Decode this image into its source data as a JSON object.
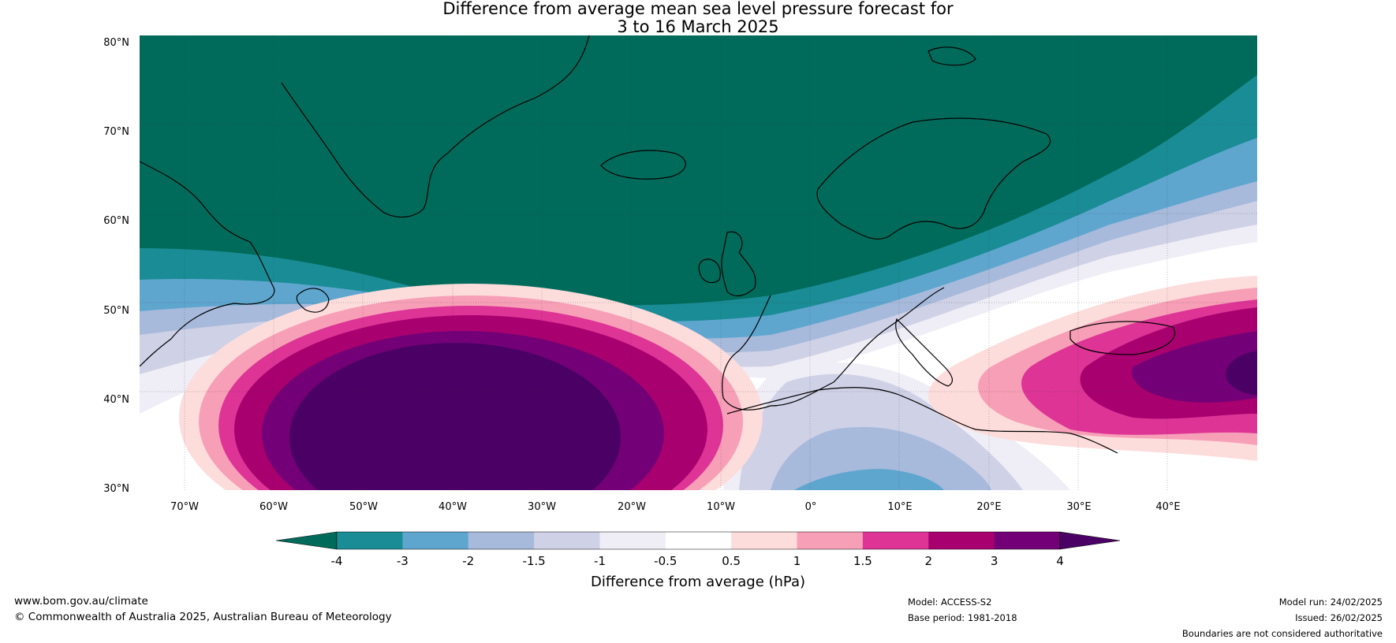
{
  "title": {
    "line1": "Difference from average mean sea level pressure forecast for",
    "line2": "3 to 16 March 2025"
  },
  "map": {
    "lat_labels": [
      "80°N",
      "70°N",
      "60°N",
      "50°N",
      "40°N",
      "30°N"
    ],
    "lon_labels": [
      "70°W",
      "60°W",
      "50°W",
      "40°W",
      "30°W",
      "20°W",
      "10°W",
      "0°",
      "10°E",
      "20°E",
      "30°E",
      "40°E"
    ],
    "lat_range": [
      30,
      81
    ],
    "lon_range": [
      -75,
      50
    ]
  },
  "colorbar": {
    "label": "Difference from average (hPa)",
    "ticks": [
      "-4",
      "-3",
      "-2",
      "-1.5",
      "-1",
      "-0.5",
      "0.5",
      "1",
      "1.5",
      "2",
      "3",
      "4"
    ],
    "colors": {
      "below_min": "#006b5a",
      "bins": [
        "#1a8c95",
        "#5fa6cf",
        "#a7badb",
        "#cfd1e6",
        "#efedf5",
        "#ffffff",
        "#fddcdc",
        "#f79fb7",
        "#dd3496",
        "#a8006f",
        "#730076"
      ],
      "above_max": "#4a0064"
    }
  },
  "footer": {
    "url": "www.bom.gov.au/climate",
    "copyright": "© Commonwealth of Australia 2025, Australian Bureau of Meteorology",
    "model": "Model: ACCESS-S2",
    "base_period": "Base period: 1981-2018",
    "model_run": "Model run: 24/02/2025",
    "issued": "Issued: 26/02/2025",
    "disclaimer": "Boundaries are not considered authoritative"
  }
}
